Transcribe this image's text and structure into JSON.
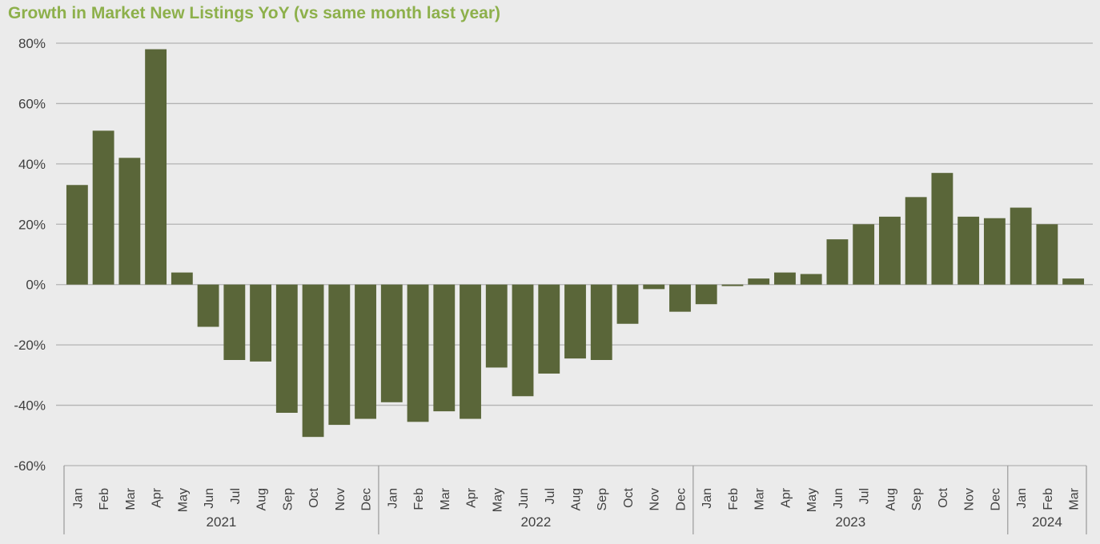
{
  "chart_data": {
    "type": "bar",
    "title": "Growth in Market New Listings YoY (vs same month last year)",
    "xlabel": "",
    "ylabel": "",
    "ylim": [
      -60,
      80
    ],
    "y_ticks": [
      "80%",
      "60%",
      "40%",
      "20%",
      "0%",
      "-20%",
      "-40%",
      "-60%"
    ],
    "y_tick_values": [
      80,
      60,
      40,
      20,
      0,
      -20,
      -40,
      -60
    ],
    "grid": "horizontal",
    "legend": "none",
    "bar_color": "#5a6639",
    "gridline_color": "#b3b3b3",
    "title_color": "#8db04b",
    "groups": [
      {
        "year": "2021",
        "months": [
          "Jan",
          "Feb",
          "Mar",
          "Apr",
          "May",
          "Jun",
          "Jul",
          "Aug",
          "Sep",
          "Oct",
          "Nov",
          "Dec"
        ],
        "values": [
          33,
          51,
          42,
          78,
          4,
          -14,
          -25,
          -25.5,
          -42.5,
          -50.5,
          -46.5,
          -44.5
        ]
      },
      {
        "year": "2022",
        "months": [
          "Jan",
          "Feb",
          "Mar",
          "Apr",
          "May",
          "Jun",
          "Jul",
          "Aug",
          "Sep",
          "Oct",
          "Nov",
          "Dec"
        ],
        "values": [
          -39,
          -45.5,
          -42,
          -44.5,
          -27.5,
          -37,
          -29.5,
          -24.5,
          -25,
          -13,
          -1.5,
          -9
        ]
      },
      {
        "year": "2023",
        "months": [
          "Jan",
          "Feb",
          "Mar",
          "Apr",
          "May",
          "Jun",
          "Jul",
          "Aug",
          "Sep",
          "Oct",
          "Nov",
          "Dec"
        ],
        "values": [
          -6.5,
          -0.5,
          2,
          4,
          3.5,
          15,
          20,
          22.5,
          29,
          37,
          22.5,
          22
        ]
      },
      {
        "year": "2024",
        "months": [
          "Jan",
          "Feb",
          "Mar"
        ],
        "values": [
          25.5,
          20,
          2
        ]
      }
    ]
  }
}
